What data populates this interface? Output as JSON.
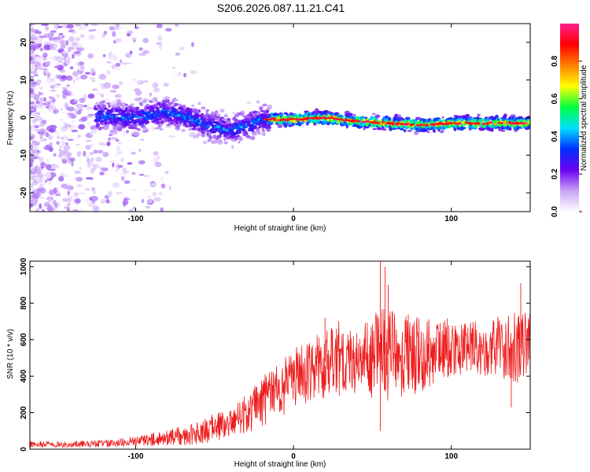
{
  "title": "S206.2026.087.11.21.C41",
  "colors": {
    "trace": "#ee1c1c",
    "axes": "#000000"
  },
  "chart_data": [
    {
      "type": "heatmap",
      "xlabel": "Height of straight line (km)",
      "ylabel": "Frequency (Hz)",
      "xlim": [
        -167,
        150
      ],
      "ylim": [
        -25,
        25
      ],
      "xticks": [
        -100,
        0,
        100
      ],
      "yticks": [
        -20,
        -10,
        0,
        10,
        20
      ],
      "colorbar": {
        "label": "Normalized spectral amplitude",
        "range": [
          0,
          1
        ],
        "ticks": [
          0.0,
          0.2,
          0.4,
          0.6,
          0.8
        ],
        "stops": [
          "#ffffff",
          "#c8a2f8",
          "#6a00f0",
          "#0030ff",
          "#00e0ff",
          "#00ff40",
          "#ffff00",
          "#ff8000",
          "#ff0000",
          "#ff1e8e"
        ]
      },
      "ridge": [
        {
          "x": -120,
          "f": 0.5
        },
        {
          "x": -100,
          "f": 0.0
        },
        {
          "x": -80,
          "f": 1.5
        },
        {
          "x": -60,
          "f": -1.0
        },
        {
          "x": -40,
          "f": -3.5
        },
        {
          "x": -20,
          "f": -0.5
        },
        {
          "x": 0,
          "f": -0.5
        },
        {
          "x": 20,
          "f": 0.0
        },
        {
          "x": 40,
          "f": -1.0
        },
        {
          "x": 60,
          "f": -1.5
        },
        {
          "x": 80,
          "f": -2.0
        },
        {
          "x": 100,
          "f": -1.5
        },
        {
          "x": 120,
          "f": -1.5
        },
        {
          "x": 140,
          "f": -1.5
        }
      ]
    },
    {
      "type": "line",
      "xlabel": "Height of straight line (km)",
      "ylabel": "SNR (10 * v/v)",
      "xlim": [
        -167,
        150
      ],
      "ylim": [
        0,
        1030
      ],
      "xticks": [
        -100,
        0,
        100
      ],
      "yticks": [
        0,
        200,
        400,
        600,
        800,
        1000
      ],
      "envelope": {
        "x": [
          -167,
          -120,
          -100,
          -80,
          -60,
          -40,
          -30,
          -20,
          -10,
          0,
          10,
          20,
          30,
          40,
          50,
          60,
          70,
          80,
          90,
          100,
          110,
          120,
          130,
          140,
          150
        ],
        "mean": [
          25,
          30,
          45,
          60,
          90,
          150,
          200,
          260,
          320,
          390,
          440,
          480,
          500,
          510,
          520,
          520,
          510,
          520,
          540,
          560,
          560,
          560,
          560,
          550,
          560
        ],
        "spread": [
          15,
          18,
          25,
          40,
          60,
          90,
          110,
          130,
          150,
          160,
          170,
          190,
          200,
          210,
          230,
          240,
          220,
          200,
          170,
          150,
          140,
          150,
          160,
          200,
          180
        ]
      },
      "peaks": [
        {
          "x": 55,
          "y": 1030
        },
        {
          "x": 58,
          "y": 1000
        },
        {
          "x": 144,
          "y": 910
        },
        {
          "x": 60,
          "y": 900
        },
        {
          "x": 20,
          "y": 720
        },
        {
          "x": 55,
          "y": 100
        },
        {
          "x": 138,
          "y": 230
        }
      ]
    }
  ]
}
